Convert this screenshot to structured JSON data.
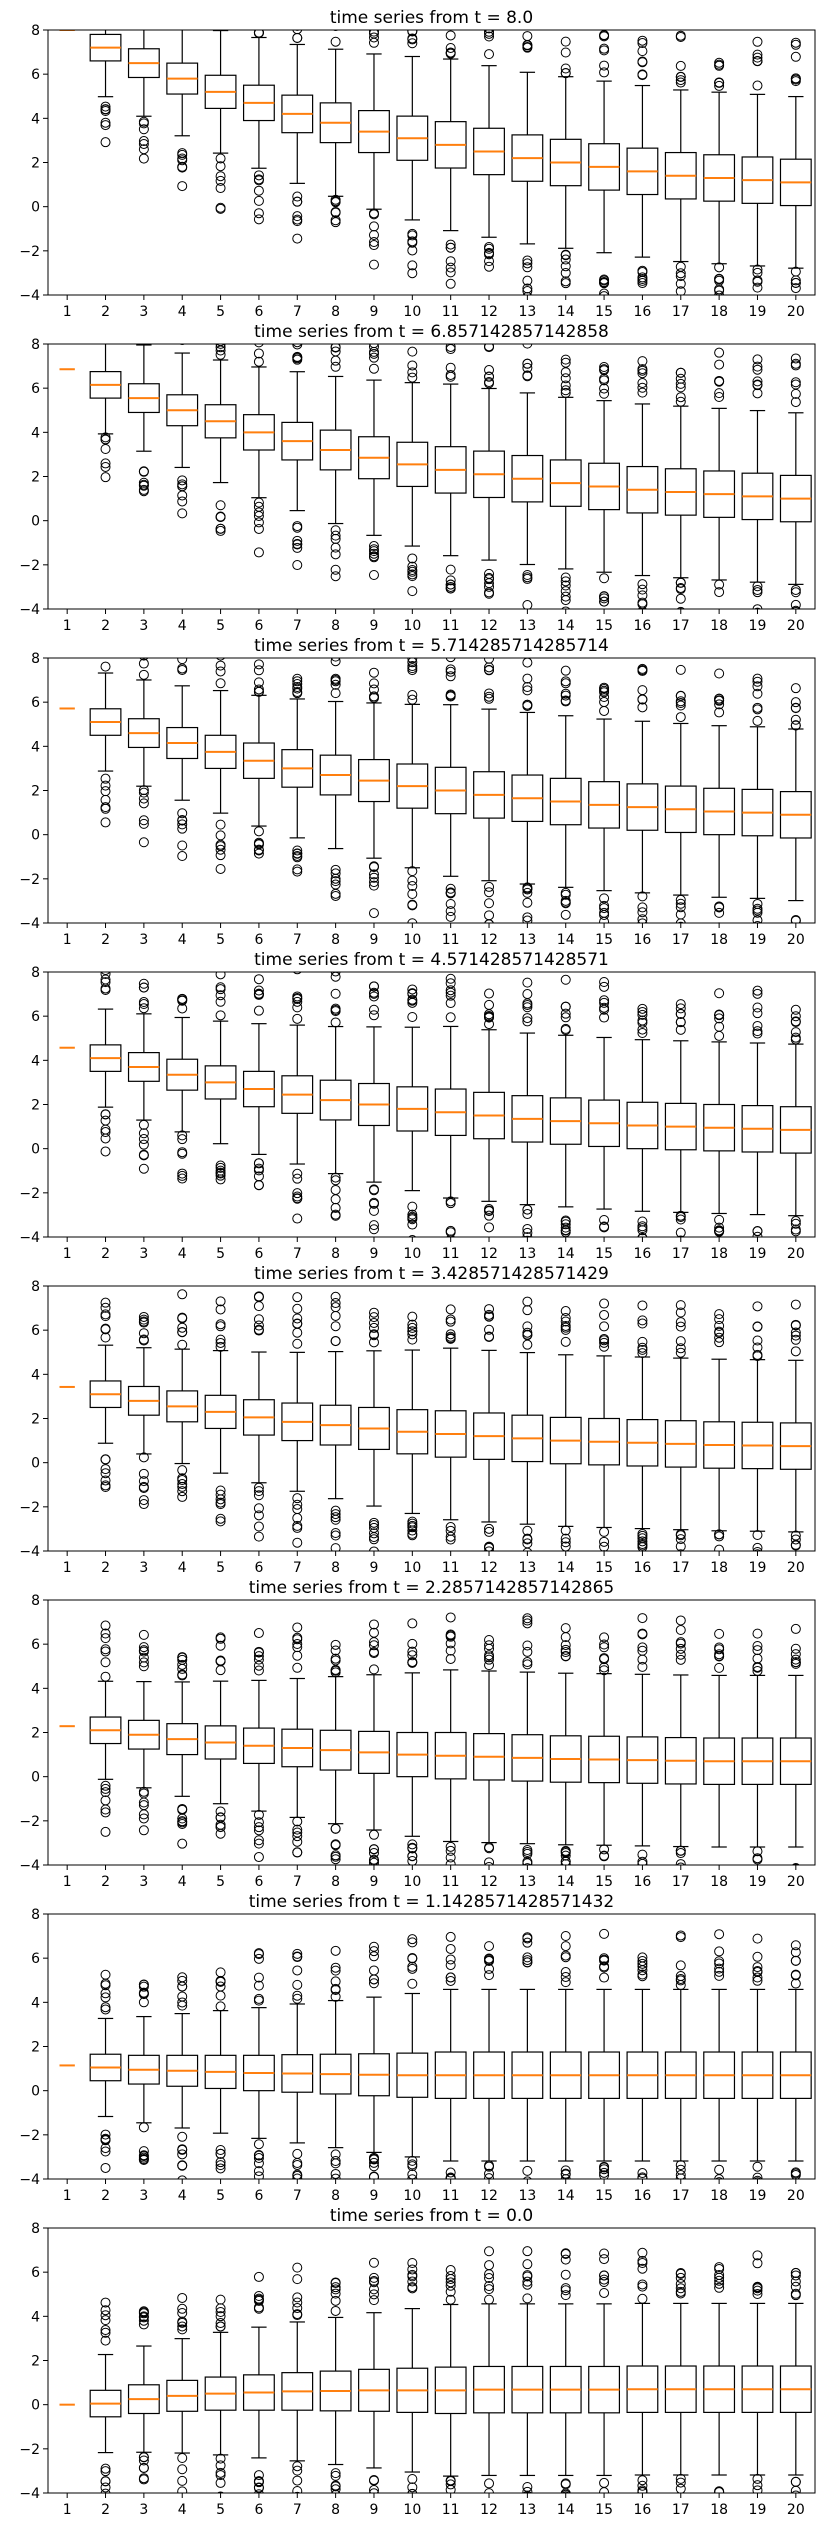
{
  "chart_data": [
    {
      "type": "box",
      "title": "time series from t = 8.0",
      "x_ticks": [
        "1",
        "2",
        "3",
        "4",
        "5",
        "6",
        "7",
        "8",
        "9",
        "10",
        "11",
        "12",
        "13",
        "14",
        "15",
        "16",
        "17",
        "18",
        "19",
        "20"
      ],
      "y_ticks": [
        "-4",
        "-2",
        "0",
        "2",
        "4",
        "6",
        "8"
      ],
      "ylim": [
        -4,
        8
      ],
      "grid": false,
      "medians": [
        8.0,
        7.2,
        6.5,
        5.8,
        5.2,
        4.7,
        4.2,
        3.8,
        3.4,
        3.1,
        2.8,
        2.5,
        2.2,
        2.0,
        1.8,
        1.6,
        1.4,
        1.3,
        1.2,
        1.1
      ],
      "x_start": 1,
      "start_value": 8.0,
      "box_halfwidth": 0.4,
      "whisker_halfwidth": 0.7,
      "n_outliers": 14,
      "outlier_spread": 2.4
    },
    {
      "type": "box",
      "title": "time series from t = 6.857142857142858",
      "x_ticks": [
        "1",
        "2",
        "3",
        "4",
        "5",
        "6",
        "7",
        "8",
        "9",
        "10",
        "11",
        "12",
        "13",
        "14",
        "15",
        "16",
        "17",
        "18",
        "19",
        "20"
      ],
      "y_ticks": [
        "-4",
        "-2",
        "0",
        "2",
        "4",
        "6",
        "8"
      ],
      "ylim": [
        -4,
        8
      ],
      "grid": false,
      "medians": [
        6.857,
        6.15,
        5.55,
        5.0,
        4.5,
        4.0,
        3.6,
        3.2,
        2.85,
        2.55,
        2.3,
        2.1,
        1.9,
        1.7,
        1.55,
        1.4,
        1.3,
        1.2,
        1.1,
        1.0
      ],
      "x_start": 1,
      "start_value": 6.857,
      "box_halfwidth": 0.4,
      "whisker_halfwidth": 0.7,
      "n_outliers": 14,
      "outlier_spread": 2.4
    },
    {
      "type": "box",
      "title": "time series from t = 5.714285714285714",
      "x_ticks": [
        "1",
        "2",
        "3",
        "4",
        "5",
        "6",
        "7",
        "8",
        "9",
        "10",
        "11",
        "12",
        "13",
        "14",
        "15",
        "16",
        "17",
        "18",
        "19",
        "20"
      ],
      "y_ticks": [
        "-4",
        "-2",
        "0",
        "2",
        "4",
        "6",
        "8"
      ],
      "ylim": [
        -4,
        8
      ],
      "grid": false,
      "medians": [
        5.714,
        5.1,
        4.6,
        4.15,
        3.75,
        3.35,
        3.0,
        2.7,
        2.45,
        2.2,
        2.0,
        1.8,
        1.65,
        1.5,
        1.35,
        1.25,
        1.15,
        1.05,
        1.0,
        0.9
      ],
      "x_start": 1,
      "start_value": 5.714,
      "box_halfwidth": 0.4,
      "whisker_halfwidth": 0.7,
      "n_outliers": 14,
      "outlier_spread": 2.4
    },
    {
      "type": "box",
      "title": "time series from t = 4.571428571428571",
      "x_ticks": [
        "1",
        "2",
        "3",
        "4",
        "5",
        "6",
        "7",
        "8",
        "9",
        "10",
        "11",
        "12",
        "13",
        "14",
        "15",
        "16",
        "17",
        "18",
        "19",
        "20"
      ],
      "y_ticks": [
        "-4",
        "-2",
        "0",
        "2",
        "4",
        "6",
        "8"
      ],
      "ylim": [
        -4,
        8
      ],
      "grid": false,
      "medians": [
        4.571,
        4.1,
        3.7,
        3.35,
        3.0,
        2.7,
        2.45,
        2.2,
        2.0,
        1.8,
        1.65,
        1.5,
        1.35,
        1.25,
        1.15,
        1.05,
        1.0,
        0.95,
        0.9,
        0.85
      ],
      "x_start": 1,
      "start_value": 4.571,
      "box_halfwidth": 0.4,
      "whisker_halfwidth": 0.7,
      "n_outliers": 14,
      "outlier_spread": 2.4
    },
    {
      "type": "box",
      "title": "time series from t = 3.428571428571429",
      "x_ticks": [
        "1",
        "2",
        "3",
        "4",
        "5",
        "6",
        "7",
        "8",
        "9",
        "10",
        "11",
        "12",
        "13",
        "14",
        "15",
        "16",
        "17",
        "18",
        "19",
        "20"
      ],
      "y_ticks": [
        "-4",
        "-2",
        "0",
        "2",
        "4",
        "6",
        "8"
      ],
      "ylim": [
        -4,
        8
      ],
      "grid": false,
      "medians": [
        3.429,
        3.1,
        2.8,
        2.55,
        2.3,
        2.05,
        1.85,
        1.7,
        1.55,
        1.4,
        1.3,
        1.2,
        1.1,
        1.0,
        0.95,
        0.9,
        0.85,
        0.8,
        0.78,
        0.75
      ],
      "x_start": 1,
      "start_value": 3.429,
      "box_halfwidth": 0.4,
      "whisker_halfwidth": 0.7,
      "n_outliers": 14,
      "outlier_spread": 2.4
    },
    {
      "type": "box",
      "title": "time series from t = 2.2857142857142865",
      "x_ticks": [
        "1",
        "2",
        "3",
        "4",
        "5",
        "6",
        "7",
        "8",
        "9",
        "10",
        "11",
        "12",
        "13",
        "14",
        "15",
        "16",
        "17",
        "18",
        "19",
        "20"
      ],
      "y_ticks": [
        "-4",
        "-2",
        "0",
        "2",
        "4",
        "6",
        "8"
      ],
      "ylim": [
        -4,
        8
      ],
      "grid": false,
      "medians": [
        2.286,
        2.1,
        1.9,
        1.7,
        1.55,
        1.4,
        1.3,
        1.2,
        1.1,
        1.0,
        0.95,
        0.9,
        0.85,
        0.8,
        0.78,
        0.75,
        0.72,
        0.7,
        0.7,
        0.7
      ],
      "x_start": 1,
      "start_value": 2.286,
      "box_halfwidth": 0.4,
      "whisker_halfwidth": 0.7,
      "n_outliers": 14,
      "outlier_spread": 2.4
    },
    {
      "type": "box",
      "title": "time series from t = 1.1428571428571432",
      "x_ticks": [
        "1",
        "2",
        "3",
        "4",
        "5",
        "6",
        "7",
        "8",
        "9",
        "10",
        "11",
        "12",
        "13",
        "14",
        "15",
        "16",
        "17",
        "18",
        "19",
        "20"
      ],
      "y_ticks": [
        "-4",
        "-2",
        "0",
        "2",
        "4",
        "6",
        "8"
      ],
      "ylim": [
        -4,
        8
      ],
      "grid": false,
      "medians": [
        1.143,
        1.05,
        0.95,
        0.9,
        0.85,
        0.8,
        0.78,
        0.75,
        0.72,
        0.7,
        0.7,
        0.7,
        0.7,
        0.7,
        0.7,
        0.7,
        0.7,
        0.7,
        0.7,
        0.7
      ],
      "x_start": 1,
      "start_value": 1.143,
      "box_halfwidth": 0.4,
      "whisker_halfwidth": 0.7,
      "n_outliers": 14,
      "outlier_spread": 2.4
    },
    {
      "type": "box",
      "title": "time series from t = 0.0",
      "x_ticks": [
        "1",
        "2",
        "3",
        "4",
        "5",
        "6",
        "7",
        "8",
        "9",
        "10",
        "11",
        "12",
        "13",
        "14",
        "15",
        "16",
        "17",
        "18",
        "19",
        "20"
      ],
      "y_ticks": [
        "-4",
        "-2",
        "0",
        "2",
        "4",
        "6",
        "8"
      ],
      "ylim": [
        -4,
        8
      ],
      "grid": false,
      "medians": [
        0.0,
        0.05,
        0.25,
        0.4,
        0.5,
        0.55,
        0.6,
        0.62,
        0.65,
        0.65,
        0.65,
        0.68,
        0.68,
        0.68,
        0.68,
        0.7,
        0.7,
        0.7,
        0.7,
        0.7
      ],
      "x_start": 1,
      "start_value": 0.0,
      "box_halfwidth": 0.4,
      "whisker_halfwidth": 0.7,
      "n_outliers": 14,
      "outlier_spread": 2.4
    }
  ],
  "colors": {
    "median": "#ff7f0e",
    "box_edge": "#000000",
    "outlier": "#000000",
    "background": "#ffffff"
  }
}
